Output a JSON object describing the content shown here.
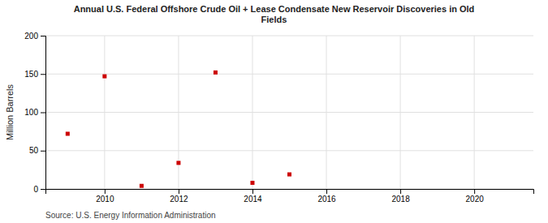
{
  "chart_data": {
    "type": "scatter",
    "title": "Annual U.S. Federal Offshore Crude Oil + Lease Condensate New Reservoir Discoveries in Old\nFields",
    "ylabel": "Million Barrels",
    "annotations": [
      "Source: U.S. Energy Information Administration"
    ],
    "x": [
      2009,
      2010,
      2011,
      2012,
      2013,
      2014,
      2015
    ],
    "values": [
      72,
      147,
      4,
      34,
      152,
      8,
      19
    ],
    "color": "#cc0000",
    "marker": "square",
    "xlim": [
      2008.4,
      2021.6
    ],
    "ylim": [
      0,
      200
    ],
    "xticks": [
      2010,
      2012,
      2014,
      2016,
      2018,
      2020
    ],
    "yticks": [
      0,
      50,
      100,
      150,
      200
    ],
    "grid": true
  }
}
